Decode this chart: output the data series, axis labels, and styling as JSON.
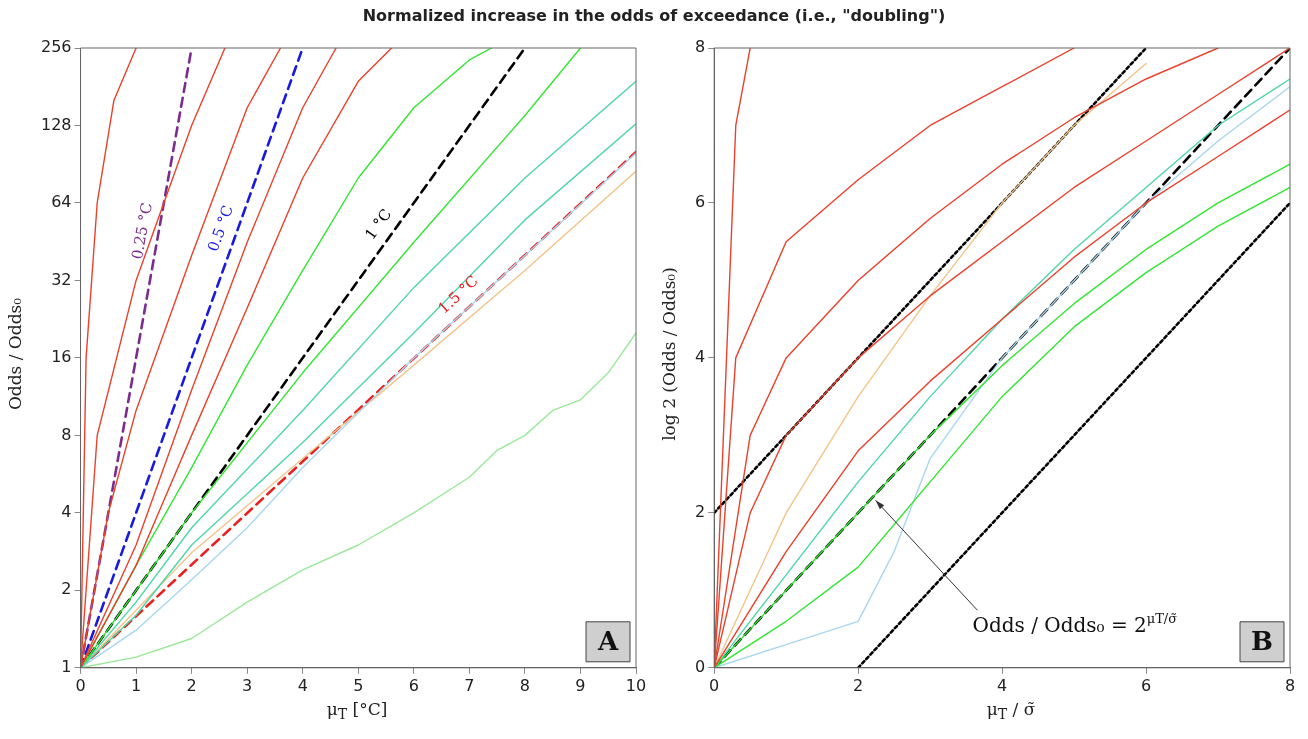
{
  "chart_data": [
    {
      "type": "line",
      "title": "Normalized increase in the odds of exceedance (i.e., \"doubling\")",
      "xlabel": "μ$_{T}$ [°C]",
      "ylabel": "Odds / Odds₀",
      "log": "y",
      "grid": false,
      "legend": false,
      "marker": "none",
      "line_style": "solid",
      "xlim": [
        0,
        10
      ],
      "xticks": [
        0,
        1,
        2,
        3,
        4,
        5,
        6,
        7,
        8,
        9,
        10
      ],
      "ylim": [
        1,
        256
      ],
      "yticks": [
        1,
        2,
        4,
        8,
        16,
        32,
        64,
        128,
        256
      ],
      "annotations": [
        "A"
      ],
      "series": [
        {
          "color": "#e8412c",
          "x": [
            0,
            0.3,
            1,
            2,
            2.6
          ],
          "values": [
            1,
            8,
            32,
            128,
            256
          ]
        },
        {
          "color": "#e8412c",
          "x": [
            0,
            0.1,
            0.3,
            0.6,
            1
          ],
          "values": [
            1,
            16,
            64,
            160,
            256
          ]
        },
        {
          "color": "#e8412c",
          "x": [
            0,
            0.5,
            1,
            2,
            3,
            3.6
          ],
          "values": [
            1,
            4,
            10,
            40,
            150,
            256
          ]
        },
        {
          "color": "#e8412c",
          "x": [
            0,
            1,
            2,
            3,
            4,
            4.6
          ],
          "values": [
            1,
            3,
            12,
            45,
            150,
            256
          ]
        },
        {
          "color": "#e8412c",
          "x": [
            0,
            1,
            2,
            3,
            4,
            5,
            5.6
          ],
          "values": [
            1,
            2.5,
            8,
            25,
            80,
            190,
            256
          ]
        },
        {
          "color": "#33e533",
          "x": [
            0,
            1,
            2,
            3,
            4,
            5,
            6,
            7,
            7.4
          ],
          "values": [
            1,
            2.5,
            6,
            15,
            35,
            80,
            150,
            230,
            256
          ]
        },
        {
          "color": "#33e533",
          "x": [
            0,
            1,
            2,
            4,
            6,
            8,
            9
          ],
          "values": [
            1,
            2,
            4,
            14,
            45,
            140,
            256
          ]
        },
        {
          "color": "#4fd6a6",
          "x": [
            0,
            1,
            2,
            4,
            6,
            8,
            10
          ],
          "values": [
            1,
            1.8,
            3.5,
            10,
            30,
            80,
            190
          ]
        },
        {
          "color": "#4fd6a6",
          "x": [
            0,
            1,
            2,
            4,
            6,
            8,
            10
          ],
          "values": [
            1,
            1.6,
            3,
            7.5,
            20,
            55,
            130
          ]
        },
        {
          "color": "#a9d6ee",
          "x": [
            0,
            1,
            2,
            3,
            4,
            6,
            8,
            10
          ],
          "values": [
            1,
            1.4,
            2.2,
            3.5,
            6,
            16,
            40,
            100
          ]
        },
        {
          "color": "#f2c48a",
          "x": [
            0,
            2,
            4,
            6,
            8,
            10
          ],
          "values": [
            1,
            2.8,
            6.5,
            15,
            35,
            85
          ]
        },
        {
          "color": "#9be89b",
          "x": [
            0,
            1,
            2,
            3,
            4,
            5,
            6,
            7,
            7.5,
            8,
            8.5,
            9,
            9.5,
            10
          ],
          "values": [
            1,
            1.1,
            1.3,
            1.8,
            2.4,
            3,
            4,
            5.5,
            7,
            8,
            10,
            11,
            14,
            20
          ]
        },
        {
          "name": "0.25 °C",
          "color": "#7b2d8e",
          "line_style": "dashed",
          "x": [
            0,
            2
          ],
          "values": [
            1,
            256
          ]
        },
        {
          "name": "0.5 °C",
          "color": "#1a1adc",
          "line_style": "dashed",
          "x": [
            0,
            4
          ],
          "values": [
            1,
            256
          ]
        },
        {
          "name": "1 °C",
          "color": "#000000",
          "line_style": "dashed",
          "x": [
            0,
            8
          ],
          "values": [
            1,
            256
          ]
        },
        {
          "name": "1.5 °C",
          "color": "#e82020",
          "line_style": "dashed",
          "x": [
            0,
            10
          ],
          "values": [
            1,
            101
          ]
        }
      ]
    },
    {
      "type": "line",
      "xlabel": "μ$_{T}$ / σ̃",
      "ylabel": "log 2 (Odds / Odds₀)",
      "grid": false,
      "legend": false,
      "marker": "none",
      "line_style": "solid",
      "xlim": [
        0,
        8
      ],
      "xticks": [
        0,
        2,
        4,
        6,
        8
      ],
      "ylim": [
        0,
        8
      ],
      "yticks": [
        0,
        2,
        4,
        6,
        8
      ],
      "annotations": [
        "B",
        {
          "text": "Odds / Odds₀ = 2$^{μT/σ̃}$",
          "x": 2.2,
          "y": 2.2
        }
      ],
      "series": [
        {
          "color": "#e8412c",
          "x": [
            0,
            0.3,
            0.5
          ],
          "values": [
            0,
            7,
            8
          ]
        },
        {
          "color": "#e8412c",
          "x": [
            0,
            0.3,
            1,
            2,
            3,
            4,
            5
          ],
          "values": [
            0,
            4,
            5.5,
            6.3,
            7,
            7.5,
            8
          ]
        },
        {
          "color": "#e8412c",
          "x": [
            0,
            0.5,
            1,
            2,
            3,
            4,
            5,
            6,
            7
          ],
          "values": [
            0,
            3,
            4,
            5,
            5.8,
            6.5,
            7.1,
            7.6,
            8
          ]
        },
        {
          "color": "#e8412c",
          "x": [
            0,
            0.5,
            1,
            2,
            3,
            4,
            5,
            6,
            7,
            8
          ],
          "values": [
            0,
            2,
            3,
            4,
            4.8,
            5.5,
            6.2,
            6.8,
            7.4,
            8
          ]
        },
        {
          "color": "#e8412c",
          "x": [
            0,
            1,
            2,
            3,
            4,
            5,
            6,
            7,
            8
          ],
          "values": [
            0,
            1.5,
            2.8,
            3.7,
            4.5,
            5.3,
            6,
            6.6,
            7.2
          ]
        },
        {
          "color": "#33e533",
          "x": [
            0,
            1,
            2,
            3,
            4,
            5,
            6,
            7,
            8
          ],
          "values": [
            0,
            1,
            2,
            3,
            3.9,
            4.7,
            5.4,
            6,
            6.5
          ]
        },
        {
          "color": "#33e533",
          "x": [
            0,
            1,
            2,
            3,
            4,
            5,
            6,
            7,
            8
          ],
          "values": [
            0,
            0.6,
            1.3,
            2.4,
            3.5,
            4.4,
            5.1,
            5.7,
            6.2
          ]
        },
        {
          "color": "#4fd6a6",
          "x": [
            0,
            1,
            2,
            3,
            4,
            5,
            6,
            7,
            8
          ],
          "values": [
            0,
            1.2,
            2.4,
            3.5,
            4.5,
            5.4,
            6.2,
            7,
            7.6
          ]
        },
        {
          "color": "#a9d6ee",
          "x": [
            0,
            1,
            2,
            2.5,
            3,
            4,
            5,
            6,
            7,
            8
          ],
          "values": [
            0,
            0.3,
            0.6,
            1.5,
            2.7,
            4,
            5,
            6,
            6.8,
            7.5
          ]
        },
        {
          "color": "#f2c48a",
          "x": [
            0,
            1,
            2,
            3,
            4,
            5,
            6
          ],
          "values": [
            0,
            2,
            3.5,
            4.8,
            6,
            7,
            7.8
          ]
        },
        {
          "color": "#000000",
          "line_style": "dashed",
          "x": [
            0,
            8
          ],
          "values": [
            0,
            8
          ]
        },
        {
          "color": "#000000",
          "line_style": "dotted",
          "x": [
            0,
            6
          ],
          "values": [
            2,
            8
          ]
        },
        {
          "color": "#000000",
          "line_style": "dotted",
          "x": [
            2,
            8
          ],
          "values": [
            0,
            6
          ]
        }
      ]
    }
  ]
}
